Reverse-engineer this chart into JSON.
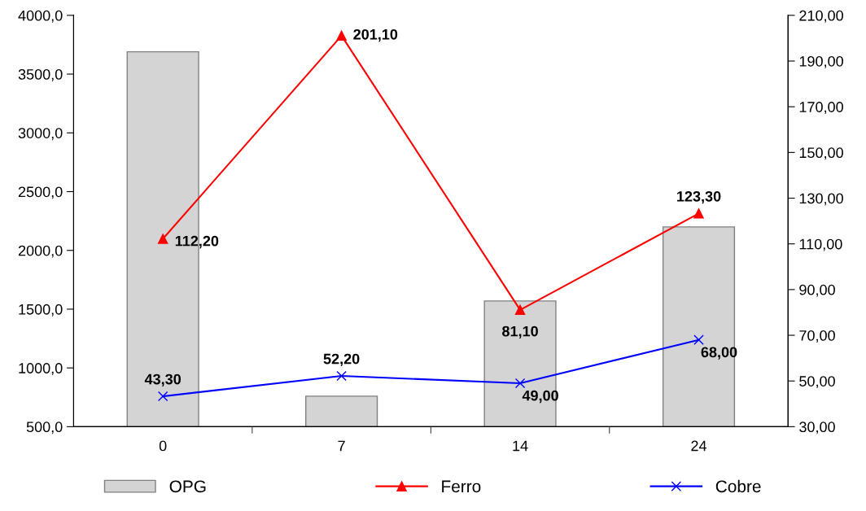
{
  "chart_data": {
    "type": "bar",
    "categories": [
      "0",
      "7",
      "14",
      "24"
    ],
    "series": [
      {
        "name": "OPG",
        "color": "#d4d4d4",
        "values": [
          3690,
          760,
          1570,
          2200
        ]
      },
      {
        "name": "Ferro",
        "type": "line",
        "axis": "y2",
        "color": "#ff0000",
        "marker": "triangle",
        "values": [
          112.2,
          201.1,
          81.1,
          123.3
        ],
        "value_labels": [
          "112,20",
          "201,10",
          "81,10",
          "123,30"
        ]
      },
      {
        "name": "Cobre",
        "type": "line",
        "axis": "y2",
        "color": "#0000ff",
        "marker": "cross",
        "values": [
          43.3,
          52.2,
          49.0,
          68.0
        ],
        "value_labels": [
          "43,30",
          "52,20",
          "49,00",
          "68,00"
        ]
      }
    ],
    "ylim": [
      500,
      4000
    ],
    "yticks": [
      {
        "value": 500,
        "label": "500,0"
      },
      {
        "value": 1000,
        "label": "1000,0"
      },
      {
        "value": 1500,
        "label": "1500,0"
      },
      {
        "value": 2000,
        "label": "2000,0"
      },
      {
        "value": 2500,
        "label": "2500,0"
      },
      {
        "value": 3000,
        "label": "3000,0"
      },
      {
        "value": 3500,
        "label": "3500,0"
      },
      {
        "value": 4000,
        "label": "4000,0"
      }
    ],
    "y2lim": [
      30,
      210
    ],
    "y2ticks": [
      {
        "value": 30,
        "label": "30,00"
      },
      {
        "value": 50,
        "label": "50,00"
      },
      {
        "value": 70,
        "label": "70,00"
      },
      {
        "value": 90,
        "label": "90,00"
      },
      {
        "value": 110,
        "label": "110,00"
      },
      {
        "value": 130,
        "label": "130,00"
      },
      {
        "value": 150,
        "label": "150,00"
      },
      {
        "value": 170,
        "label": "170,00"
      },
      {
        "value": 190,
        "label": "190,00"
      },
      {
        "value": 210,
        "label": "210,00"
      }
    ],
    "grid": false,
    "legend": "bottom"
  }
}
